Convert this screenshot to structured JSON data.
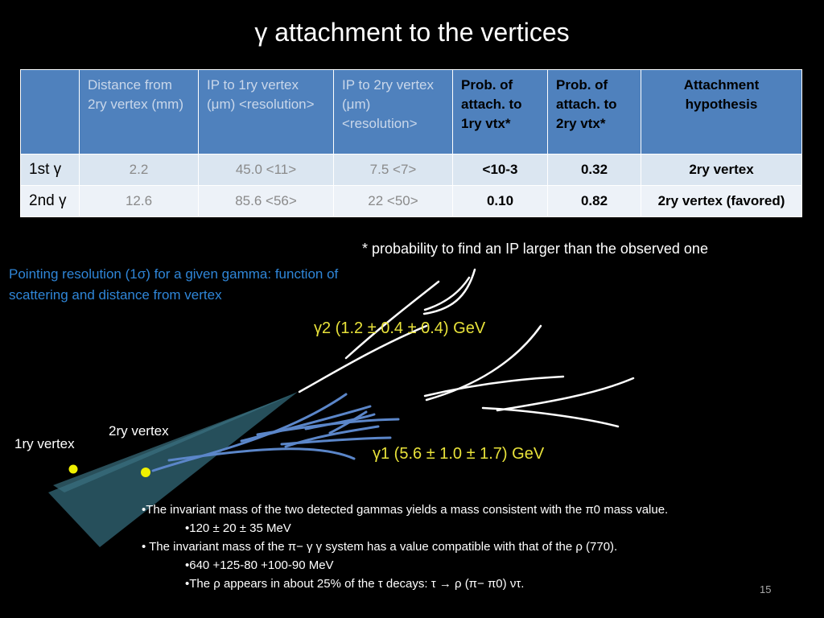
{
  "title": "γ attachment to the vertices",
  "table": {
    "headers": [
      "",
      "Distance from 2ry vertex (mm)",
      "IP to 1ry vertex (μm) <resolution>",
      "IP to 2ry vertex (μm) <resolution>",
      "Prob. of attach. to 1ry vtx*",
      "Prob. of attach. to 2ry vtx*",
      "Attachment hypothesis"
    ],
    "rows": [
      {
        "label": "1st γ",
        "distance": "2.2",
        "ip1": "45.0 <11>",
        "ip2": "7.5 <7>",
        "prob1": "<10-3",
        "prob2": "0.32",
        "hypothesis": "2ry vertex"
      },
      {
        "label": "2nd γ",
        "distance": "12.6",
        "ip1": "85.6 <56>",
        "ip2": "22 <50>",
        "prob1": "0.10",
        "prob2": "0.82",
        "hypothesis": "2ry vertex (favored)"
      }
    ]
  },
  "footnote": "* probability to find an IP larger than the observed one",
  "pointing_text": "Pointing resolution (1σ) for a given gamma: function of scattering and distance from vertex",
  "diagram": {
    "vertex1_label": "1ry vertex",
    "vertex2_label": "2ry vertex",
    "gamma2_label": "γ2 (1.2 ± 0.4 ± 0.4) GeV",
    "gamma1_label": "γ1 (5.6 ± 1.0 ± 1.7) GeV"
  },
  "bullets": [
    {
      "text": "•The invariant mass of the two detected gammas yields a mass consistent with the π0 mass value.",
      "indent": false
    },
    {
      "text": "•120 ± 20 ± 35 MeV",
      "indent": true
    },
    {
      "text": "• The invariant mass of the π− γ γ system has a value compatible with that of the ρ (770).",
      "indent": false
    },
    {
      "text": "•640 +125-80 +100-90 MeV",
      "indent": true
    },
    {
      "text": "•The ρ appears in about 25% of the τ decays: τ → ρ (π− π0) ντ.",
      "indent": true
    }
  ],
  "page_number": "15",
  "colors": {
    "header_bg": "#4f81bd",
    "row1_bg": "#dbe6f1",
    "row2_bg": "#edf2f8",
    "vertex": "#f0f000",
    "gamma_label": "#e8e23a",
    "pointing_text": "#2f86d8",
    "cone": "#2a5865",
    "track": "#5b86c9",
    "shower": "#ffffff"
  }
}
